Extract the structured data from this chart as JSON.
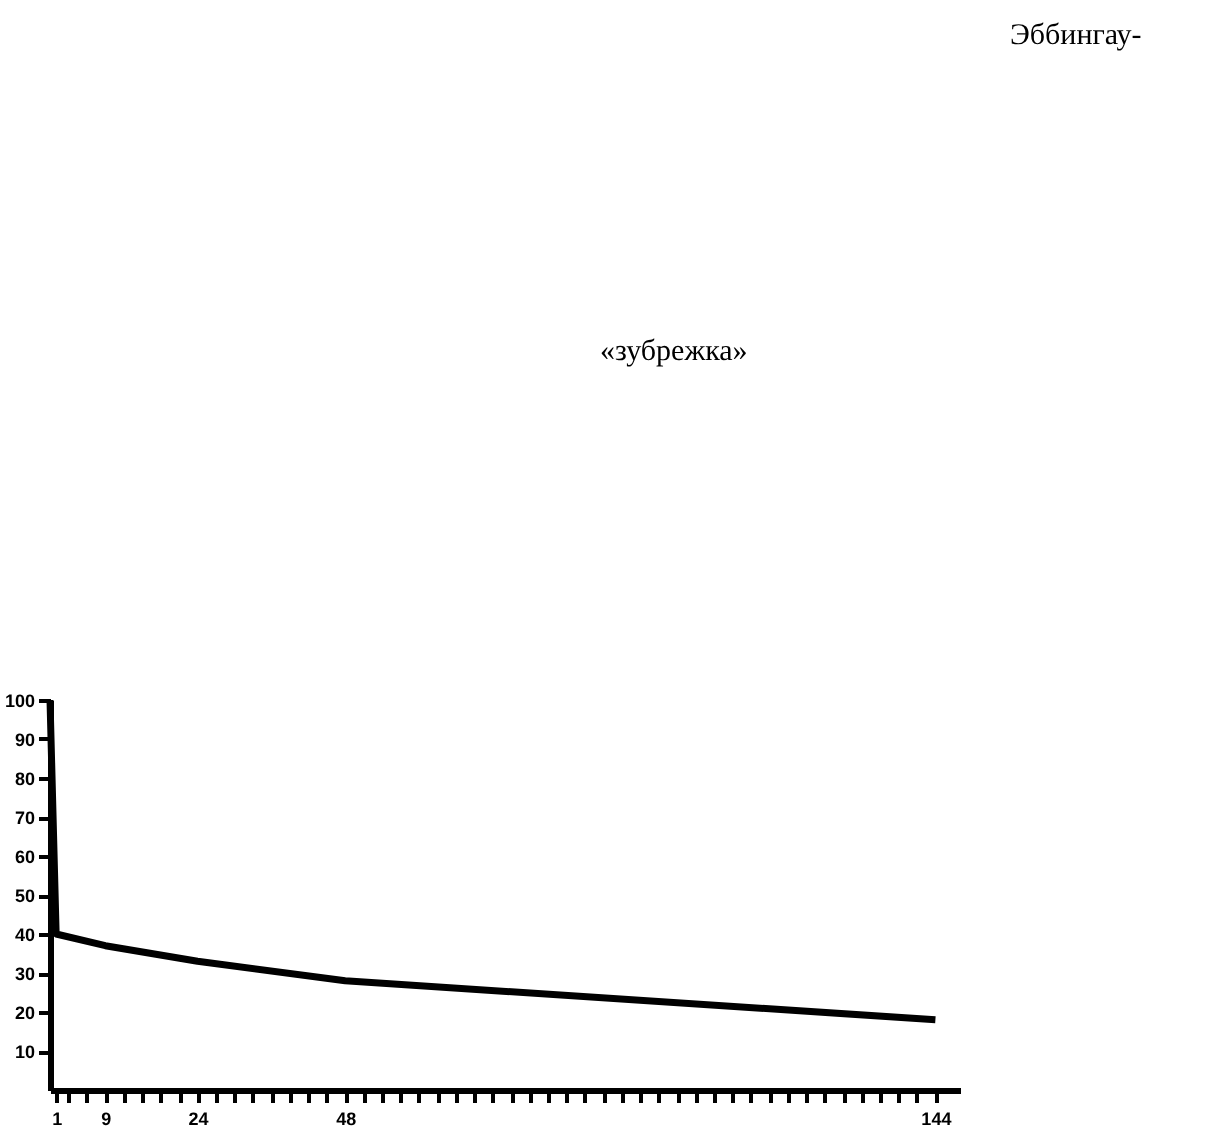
{
  "chart_data": {
    "type": "line",
    "annotations": [
      "Эббингау-",
      "«зубрежка»"
    ],
    "x": [
      0,
      1,
      9,
      24,
      48,
      144
    ],
    "series": [
      {
        "color": "#000000",
        "values": [
          100,
          40,
          37,
          33,
          28,
          18
        ]
      }
    ],
    "xlim": [
      0,
      148
    ],
    "xticks": [
      1,
      9,
      24,
      48,
      144,
      {
        "value": 3,
        "label": null
      },
      {
        "value": 6,
        "label": null
      },
      {
        "value": 12,
        "label": null
      },
      {
        "value": 15,
        "label": null
      },
      {
        "value": 18,
        "label": null
      },
      {
        "value": 21,
        "label": null
      },
      {
        "value": 27,
        "label": null
      },
      {
        "value": 30,
        "label": null
      },
      {
        "value": 33,
        "label": null
      },
      {
        "value": 36,
        "label": null
      },
      {
        "value": 39,
        "label": null
      },
      {
        "value": 42,
        "label": null
      },
      {
        "value": 45,
        "label": null
      },
      {
        "value": 51,
        "label": null
      },
      {
        "value": 54,
        "label": null
      },
      {
        "value": 57,
        "label": null
      },
      {
        "value": 60,
        "label": null
      },
      {
        "value": 63,
        "label": null
      },
      {
        "value": 66,
        "label": null
      },
      {
        "value": 69,
        "label": null
      },
      {
        "value": 72,
        "label": null
      },
      {
        "value": 75,
        "label": null
      },
      {
        "value": 78,
        "label": null
      },
      {
        "value": 81,
        "label": null
      },
      {
        "value": 84,
        "label": null
      },
      {
        "value": 87,
        "label": null
      },
      {
        "value": 90,
        "label": null
      },
      {
        "value": 93,
        "label": null
      },
      {
        "value": 96,
        "label": null
      },
      {
        "value": 99,
        "label": null
      },
      {
        "value": 102,
        "label": null
      },
      {
        "value": 105,
        "label": null
      },
      {
        "value": 108,
        "label": null
      },
      {
        "value": 111,
        "label": null
      },
      {
        "value": 114,
        "label": null
      },
      {
        "value": 117,
        "label": null
      },
      {
        "value": 120,
        "label": null
      },
      {
        "value": 123,
        "label": null
      },
      {
        "value": 126,
        "label": null
      },
      {
        "value": 129,
        "label": null
      },
      {
        "value": 132,
        "label": null
      },
      {
        "value": 135,
        "label": null
      },
      {
        "value": 138,
        "label": null
      },
      {
        "value": 141,
        "label": null
      }
    ],
    "ylim": [
      0,
      100
    ],
    "yticks": [
      10,
      20,
      30,
      40,
      50,
      60,
      70,
      80,
      90,
      100
    ],
    "grid": false,
    "marker": "none",
    "line_style": "solid"
  }
}
